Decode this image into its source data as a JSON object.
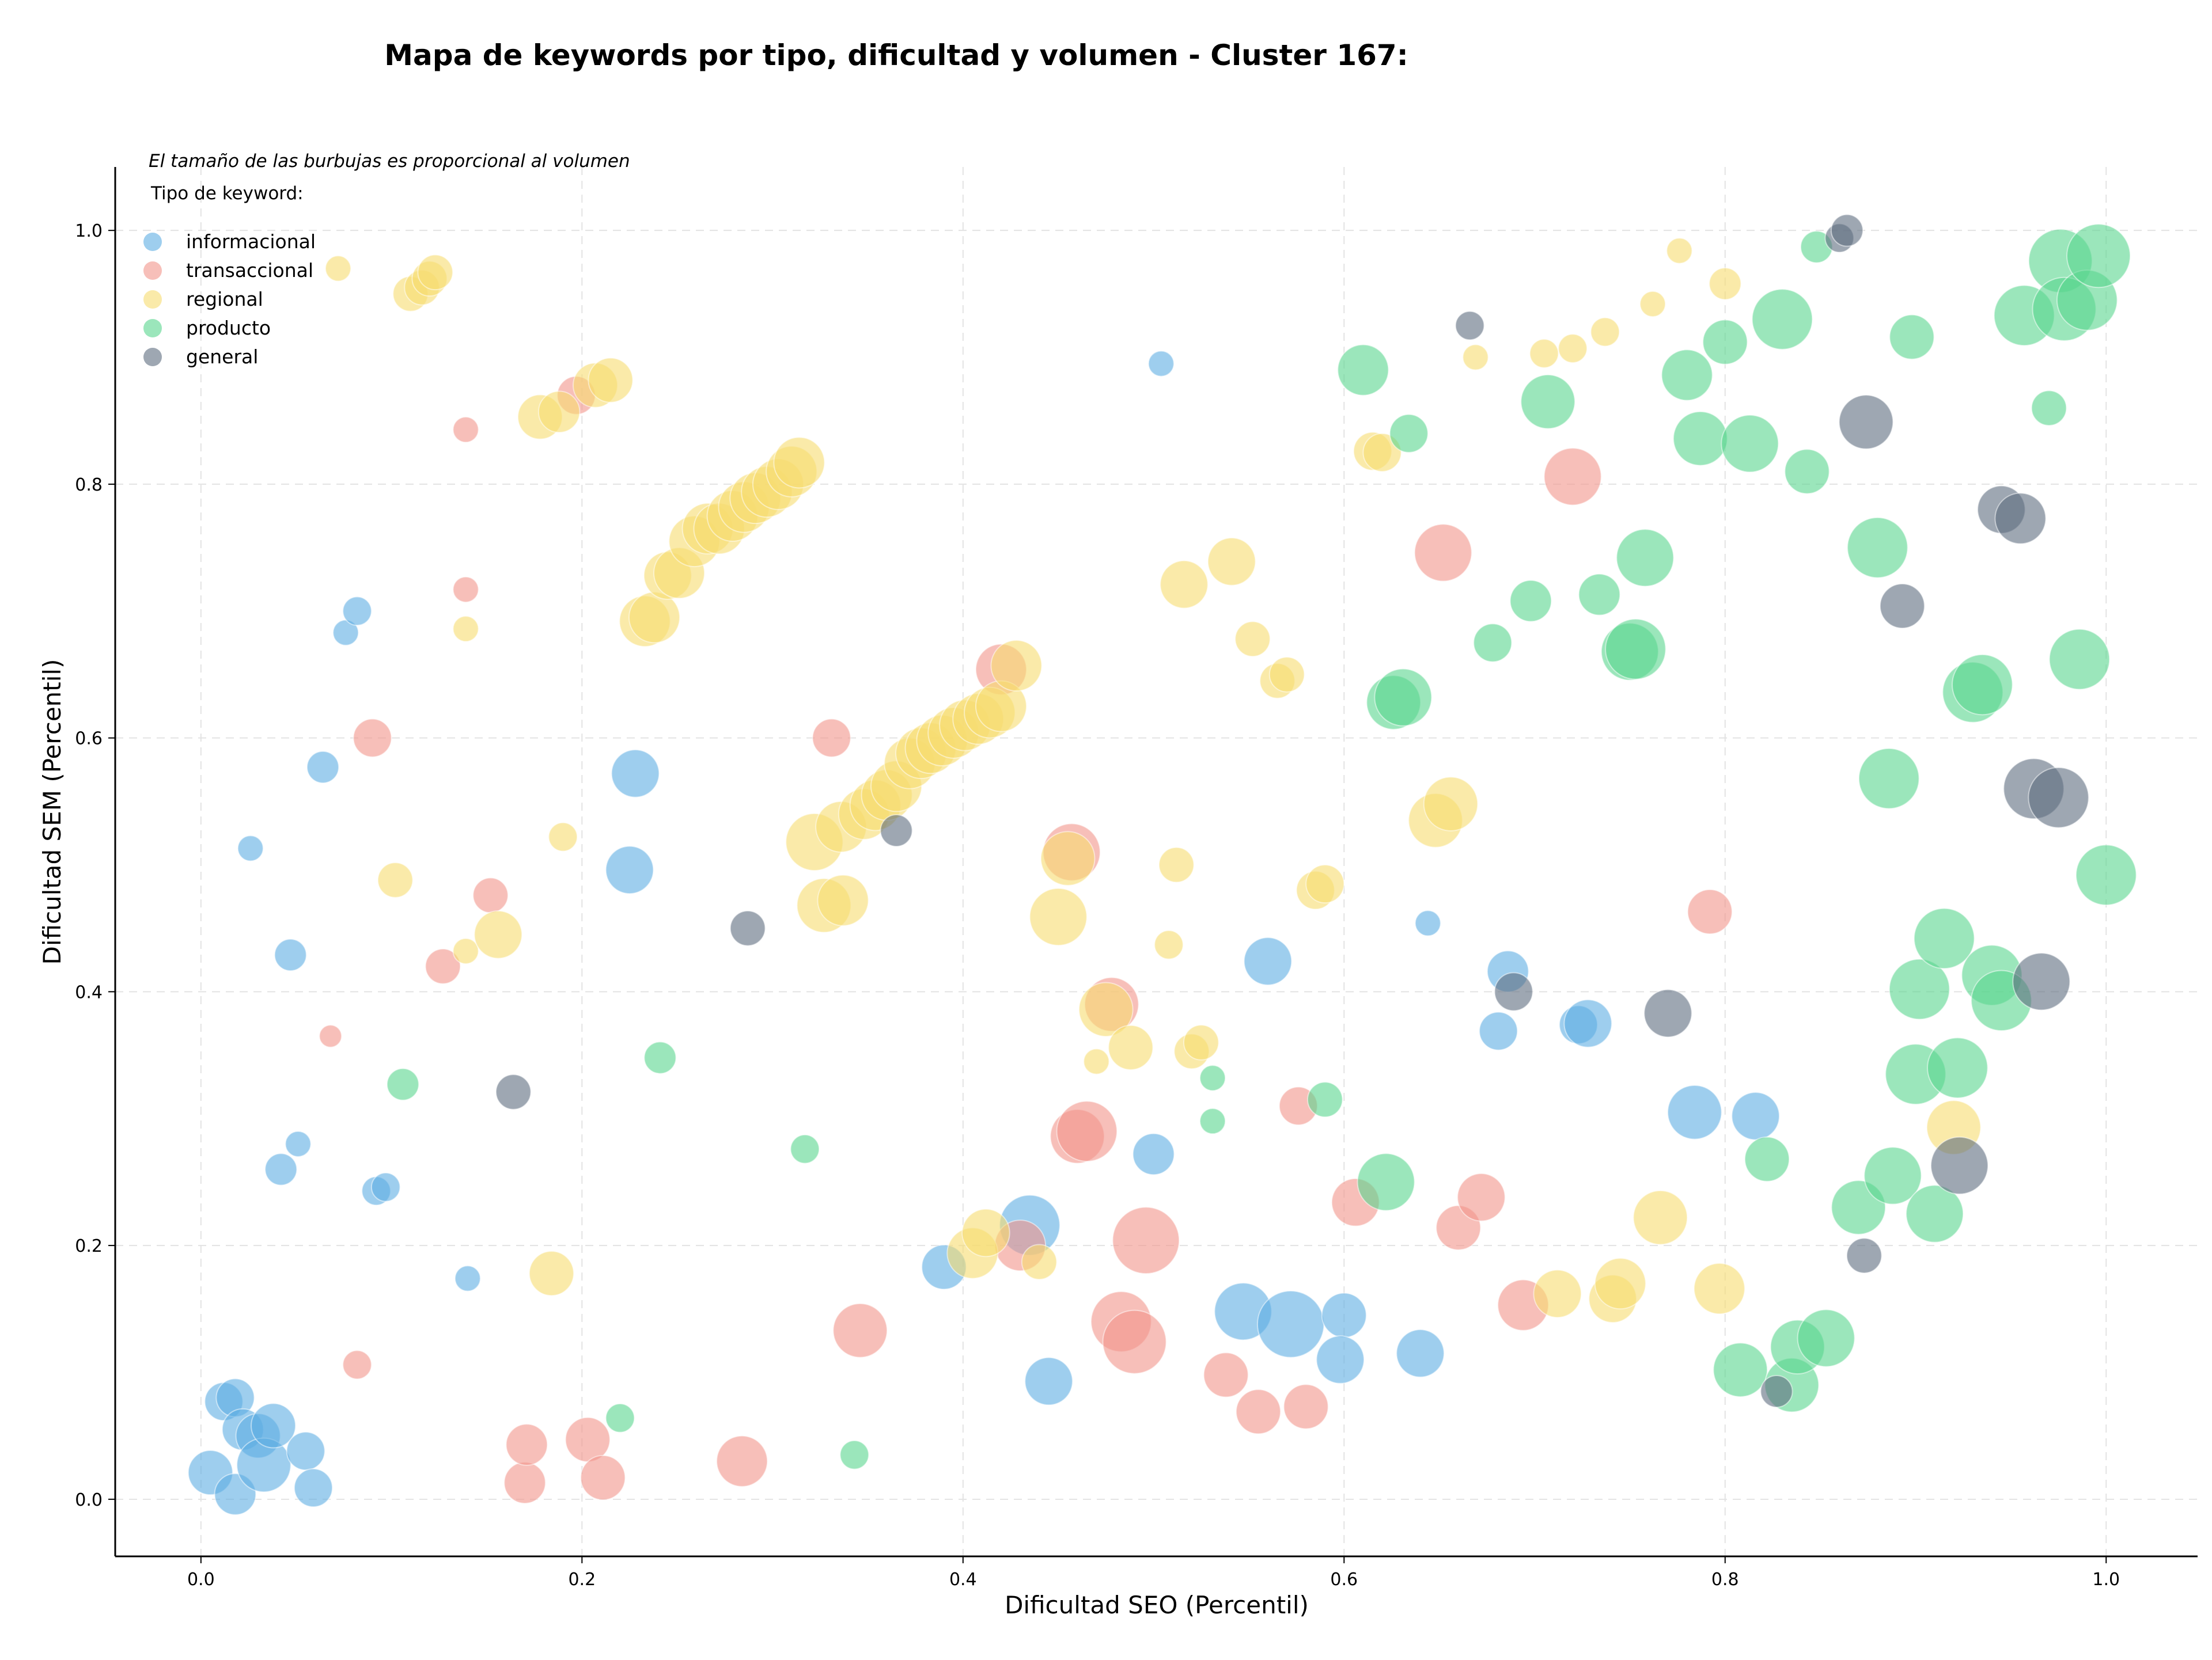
{
  "chart_data": {
    "type": "scatter",
    "title": "Mapa de keywords por tipo, dificultad y volumen - Cluster 167:",
    "xlabel": "Dificultad SEO (Percentil)",
    "ylabel": "Dificultad SEM (Percentil)",
    "xlim": [
      -0.045,
      1.048
    ],
    "ylim": [
      -0.045,
      1.05
    ],
    "xticks": [
      0.0,
      0.2,
      0.4,
      0.6,
      0.8,
      1.0
    ],
    "yticks": [
      0.0,
      0.2,
      0.4,
      0.6,
      0.8,
      1.0
    ],
    "xtick_labels": [
      "0.0",
      "0.2",
      "0.4",
      "0.6",
      "0.8",
      "1.0"
    ],
    "ytick_labels": [
      "0.0",
      "0.2",
      "0.4",
      "0.6",
      "0.8",
      "1.0"
    ],
    "grid": true,
    "annotation": "El tamaño de las burbujas es proporcional al volumen",
    "legend": {
      "title": "Tipo de keyword:",
      "placement": "top-left"
    },
    "series": [
      {
        "name": "informacional",
        "color": "#5DADE2",
        "points": [
          [
            0.005,
            0.021,
            0.7
          ],
          [
            0.012,
            0.077,
            0.6
          ],
          [
            0.018,
            0.08,
            0.6
          ],
          [
            0.018,
            0.004,
            0.65
          ],
          [
            0.022,
            0.055,
            0.65
          ],
          [
            0.03,
            0.05,
            0.7
          ],
          [
            0.033,
            0.027,
            0.85
          ],
          [
            0.038,
            0.058,
            0.7
          ],
          [
            0.042,
            0.26,
            0.5
          ],
          [
            0.055,
            0.038,
            0.6
          ],
          [
            0.059,
            0.009,
            0.6
          ],
          [
            0.047,
            0.429,
            0.5
          ],
          [
            0.051,
            0.28,
            0.4
          ],
          [
            0.026,
            0.513,
            0.4
          ],
          [
            0.064,
            0.577,
            0.5
          ],
          [
            0.076,
            0.683,
            0.4
          ],
          [
            0.082,
            0.7,
            0.45
          ],
          [
            0.092,
            0.243,
            0.45
          ],
          [
            0.097,
            0.246,
            0.45
          ],
          [
            0.14,
            0.174,
            0.4
          ],
          [
            0.228,
            0.572,
            0.75
          ],
          [
            0.225,
            0.496,
            0.75
          ],
          [
            0.39,
            0.183,
            0.7
          ],
          [
            0.435,
            0.216,
            0.95
          ],
          [
            0.445,
            0.093,
            0.75
          ],
          [
            0.5,
            0.272,
            0.65
          ],
          [
            0.504,
            0.895,
            0.4
          ],
          [
            0.547,
            0.148,
            0.9
          ],
          [
            0.56,
            0.424,
            0.75
          ],
          [
            0.572,
            0.138,
            1.05
          ],
          [
            0.6,
            0.145,
            0.7
          ],
          [
            0.598,
            0.11,
            0.75
          ],
          [
            0.64,
            0.115,
            0.75
          ],
          [
            0.644,
            0.454,
            0.4
          ],
          [
            0.681,
            0.369,
            0.6
          ],
          [
            0.686,
            0.416,
            0.65
          ],
          [
            0.723,
            0.374,
            0.6
          ],
          [
            0.728,
            0.375,
            0.75
          ],
          [
            0.784,
            0.305,
            0.85
          ],
          [
            0.816,
            0.302,
            0.75
          ]
        ]
      },
      {
        "name": "transaccional",
        "color": "#F1948A",
        "points": [
          [
            0.068,
            0.365,
            0.35
          ],
          [
            0.082,
            0.106,
            0.45
          ],
          [
            0.09,
            0.6,
            0.6
          ],
          [
            0.127,
            0.42,
            0.55
          ],
          [
            0.139,
            0.843,
            0.4
          ],
          [
            0.139,
            0.717,
            0.4
          ],
          [
            0.152,
            0.476,
            0.55
          ],
          [
            0.17,
            0.013,
            0.65
          ],
          [
            0.171,
            0.043,
            0.65
          ],
          [
            0.197,
            0.87,
            0.6
          ],
          [
            0.203,
            0.047,
            0.7
          ],
          [
            0.211,
            0.017,
            0.7
          ],
          [
            0.284,
            0.03,
            0.8
          ],
          [
            0.331,
            0.6,
            0.6
          ],
          [
            0.346,
            0.133,
            0.85
          ],
          [
            0.42,
            0.654,
            0.8
          ],
          [
            0.43,
            0.2,
            0.8
          ],
          [
            0.457,
            0.51,
            0.9
          ],
          [
            0.46,
            0.286,
            0.85
          ],
          [
            0.465,
            0.29,
            0.95
          ],
          [
            0.478,
            0.39,
            0.85
          ],
          [
            0.483,
            0.14,
            0.95
          ],
          [
            0.49,
            0.124,
            1.0
          ],
          [
            0.496,
            0.204,
            1.05
          ],
          [
            0.538,
            0.098,
            0.7
          ],
          [
            0.555,
            0.069,
            0.7
          ],
          [
            0.58,
            0.073,
            0.7
          ],
          [
            0.576,
            0.31,
            0.6
          ],
          [
            0.606,
            0.234,
            0.75
          ],
          [
            0.652,
            0.746,
            0.9
          ],
          [
            0.66,
            0.214,
            0.7
          ],
          [
            0.672,
            0.238,
            0.75
          ],
          [
            0.694,
            0.153,
            0.8
          ],
          [
            0.72,
            0.806,
            0.9
          ],
          [
            0.792,
            0.463,
            0.7
          ]
        ]
      },
      {
        "name": "regional",
        "color": "#F7DC6F",
        "points": [
          [
            0.072,
            0.97,
            0.4
          ],
          [
            0.11,
            0.95,
            0.55
          ],
          [
            0.116,
            0.955,
            0.55
          ],
          [
            0.12,
            0.962,
            0.55
          ],
          [
            0.123,
            0.967,
            0.55
          ],
          [
            0.178,
            0.853,
            0.7
          ],
          [
            0.188,
            0.857,
            0.65
          ],
          [
            0.207,
            0.878,
            0.7
          ],
          [
            0.215,
            0.882,
            0.7
          ],
          [
            0.139,
            0.686,
            0.4
          ],
          [
            0.102,
            0.488,
            0.55
          ],
          [
            0.139,
            0.432,
            0.4
          ],
          [
            0.156,
            0.445,
            0.75
          ],
          [
            0.19,
            0.522,
            0.45
          ],
          [
            0.184,
            0.178,
            0.7
          ],
          [
            0.233,
            0.692,
            0.8
          ],
          [
            0.238,
            0.695,
            0.8
          ],
          [
            0.245,
            0.728,
            0.75
          ],
          [
            0.251,
            0.73,
            0.8
          ],
          [
            0.259,
            0.755,
            0.8
          ],
          [
            0.266,
            0.765,
            0.8
          ],
          [
            0.272,
            0.765,
            0.8
          ],
          [
            0.279,
            0.775,
            0.8
          ],
          [
            0.285,
            0.782,
            0.8
          ],
          [
            0.291,
            0.789,
            0.8
          ],
          [
            0.297,
            0.794,
            0.8
          ],
          [
            0.303,
            0.8,
            0.8
          ],
          [
            0.31,
            0.81,
            0.8
          ],
          [
            0.314,
            0.817,
            0.8
          ],
          [
            0.322,
            0.518,
            0.9
          ],
          [
            0.327,
            0.468,
            0.85
          ],
          [
            0.337,
            0.472,
            0.8
          ],
          [
            0.336,
            0.53,
            0.8
          ],
          [
            0.348,
            0.54,
            0.8
          ],
          [
            0.354,
            0.547,
            0.8
          ],
          [
            0.36,
            0.555,
            0.8
          ],
          [
            0.365,
            0.562,
            0.8
          ],
          [
            0.372,
            0.58,
            0.8
          ],
          [
            0.378,
            0.588,
            0.8
          ],
          [
            0.383,
            0.592,
            0.8
          ],
          [
            0.389,
            0.598,
            0.8
          ],
          [
            0.395,
            0.604,
            0.8
          ],
          [
            0.401,
            0.61,
            0.8
          ],
          [
            0.408,
            0.615,
            0.8
          ],
          [
            0.414,
            0.62,
            0.8
          ],
          [
            0.42,
            0.625,
            0.8
          ],
          [
            0.428,
            0.657,
            0.8
          ],
          [
            0.405,
            0.194,
            0.8
          ],
          [
            0.412,
            0.21,
            0.75
          ],
          [
            0.44,
            0.187,
            0.55
          ],
          [
            0.45,
            0.459,
            0.9
          ],
          [
            0.455,
            0.505,
            0.85
          ],
          [
            0.47,
            0.345,
            0.4
          ],
          [
            0.475,
            0.386,
            0.85
          ],
          [
            0.488,
            0.356,
            0.7
          ],
          [
            0.508,
            0.437,
            0.45
          ],
          [
            0.512,
            0.5,
            0.55
          ],
          [
            0.516,
            0.721,
            0.75
          ],
          [
            0.52,
            0.353,
            0.55
          ],
          [
            0.525,
            0.36,
            0.55
          ],
          [
            0.541,
            0.739,
            0.75
          ],
          [
            0.552,
            0.678,
            0.55
          ],
          [
            0.565,
            0.645,
            0.55
          ],
          [
            0.57,
            0.65,
            0.55
          ],
          [
            0.585,
            0.48,
            0.6
          ],
          [
            0.59,
            0.485,
            0.6
          ],
          [
            0.615,
            0.826,
            0.6
          ],
          [
            0.62,
            0.825,
            0.6
          ],
          [
            0.648,
            0.535,
            0.85
          ],
          [
            0.656,
            0.548,
            0.85
          ],
          [
            0.669,
            0.9,
            0.4
          ],
          [
            0.705,
            0.903,
            0.45
          ],
          [
            0.712,
            0.162,
            0.75
          ],
          [
            0.72,
            0.907,
            0.45
          ],
          [
            0.737,
            0.92,
            0.45
          ],
          [
            0.741,
            0.158,
            0.75
          ],
          [
            0.745,
            0.17,
            0.8
          ],
          [
            0.762,
            0.942,
            0.4
          ],
          [
            0.766,
            0.222,
            0.85
          ],
          [
            0.776,
            0.984,
            0.4
          ],
          [
            0.797,
            0.166,
            0.8
          ],
          [
            0.8,
            0.958,
            0.5
          ],
          [
            0.92,
            0.293,
            0.85
          ]
        ]
      },
      {
        "name": "producto",
        "color": "#58D68D",
        "points": [
          [
            0.106,
            0.327,
            0.5
          ],
          [
            0.22,
            0.064,
            0.45
          ],
          [
            0.241,
            0.348,
            0.5
          ],
          [
            0.317,
            0.276,
            0.45
          ],
          [
            0.343,
            0.035,
            0.45
          ],
          [
            0.531,
            0.332,
            0.4
          ],
          [
            0.531,
            0.298,
            0.4
          ],
          [
            0.59,
            0.315,
            0.55
          ],
          [
            0.61,
            0.89,
            0.8
          ],
          [
            0.622,
            0.25,
            0.9
          ],
          [
            0.626,
            0.628,
            0.85
          ],
          [
            0.631,
            0.632,
            0.9
          ],
          [
            0.634,
            0.84,
            0.6
          ],
          [
            0.678,
            0.675,
            0.6
          ],
          [
            0.698,
            0.708,
            0.65
          ],
          [
            0.707,
            0.865,
            0.85
          ],
          [
            0.734,
            0.713,
            0.65
          ],
          [
            0.75,
            0.668,
            0.9
          ],
          [
            0.753,
            0.67,
            0.95
          ],
          [
            0.758,
            0.742,
            0.9
          ],
          [
            0.78,
            0.886,
            0.8
          ],
          [
            0.787,
            0.836,
            0.85
          ],
          [
            0.8,
            0.912,
            0.7
          ],
          [
            0.808,
            0.102,
            0.85
          ],
          [
            0.813,
            0.832,
            0.9
          ],
          [
            0.822,
            0.268,
            0.7
          ],
          [
            0.83,
            0.93,
            0.95
          ],
          [
            0.835,
            0.09,
            0.85
          ],
          [
            0.838,
            0.12,
            0.85
          ],
          [
            0.843,
            0.81,
            0.7
          ],
          [
            0.848,
            0.987,
            0.5
          ],
          [
            0.853,
            0.127,
            0.9
          ],
          [
            0.87,
            0.23,
            0.85
          ],
          [
            0.88,
            0.75,
            0.95
          ],
          [
            0.886,
            0.568,
            0.95
          ],
          [
            0.888,
            0.255,
            0.9
          ],
          [
            0.898,
            0.916,
            0.7
          ],
          [
            0.9,
            0.335,
            0.95
          ],
          [
            0.902,
            0.402,
            0.95
          ],
          [
            0.91,
            0.225,
            0.9
          ],
          [
            0.915,
            0.442,
            0.95
          ],
          [
            0.922,
            0.34,
            0.95
          ],
          [
            0.93,
            0.636,
            0.95
          ],
          [
            0.935,
            0.642,
            0.95
          ],
          [
            0.94,
            0.413,
            0.95
          ],
          [
            0.945,
            0.393,
            0.95
          ],
          [
            0.957,
            0.933,
            0.95
          ],
          [
            0.97,
            0.86,
            0.55
          ],
          [
            0.976,
            0.976,
            1.0
          ],
          [
            0.978,
            0.938,
            1.0
          ],
          [
            0.986,
            0.662,
            0.95
          ],
          [
            0.99,
            0.945,
            0.95
          ],
          [
            0.996,
            0.98,
            1.0
          ],
          [
            1.0,
            0.492,
            0.95
          ]
        ]
      },
      {
        "name": "general",
        "color": "#5D6D7E",
        "points": [
          [
            0.164,
            0.321,
            0.55
          ],
          [
            0.287,
            0.45,
            0.55
          ],
          [
            0.365,
            0.527,
            0.5
          ],
          [
            0.666,
            0.925,
            0.45
          ],
          [
            0.689,
            0.4,
            0.6
          ],
          [
            0.77,
            0.383,
            0.75
          ],
          [
            0.827,
            0.085,
            0.5
          ],
          [
            0.86,
            0.994,
            0.45
          ],
          [
            0.864,
            1.0,
            0.5
          ],
          [
            0.873,
            0.192,
            0.55
          ],
          [
            0.874,
            0.849,
            0.85
          ],
          [
            0.893,
            0.704,
            0.7
          ],
          [
            0.923,
            0.263,
            0.9
          ],
          [
            0.945,
            0.78,
            0.75
          ],
          [
            0.955,
            0.773,
            0.8
          ],
          [
            0.962,
            0.56,
            0.95
          ],
          [
            0.966,
            0.408,
            0.9
          ],
          [
            0.975,
            0.553,
            0.95
          ]
        ]
      }
    ]
  }
}
